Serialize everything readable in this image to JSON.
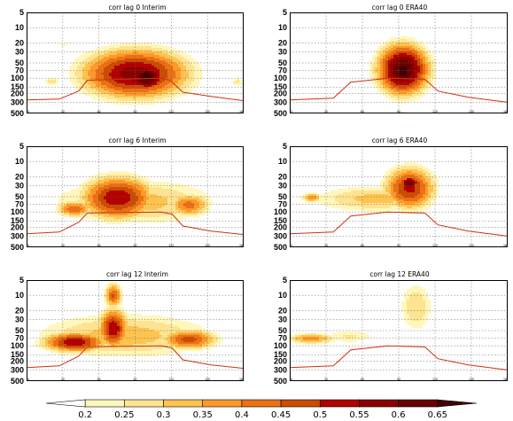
{
  "chart_data": {
    "type": "heatmap",
    "shared_y_ticks": [
      "5",
      "10",
      "20",
      "30",
      "50",
      "70",
      "100",
      "150",
      "200",
      "300",
      "500"
    ],
    "shared_x_ticks": [
      "0",
      "30",
      "60",
      "90",
      "120",
      "150",
      "180"
    ],
    "panels": [
      {
        "title": "corr lag 0 Interim",
        "blobs": [
          {
            "x": 0.5,
            "p": 82,
            "rx": 0.3,
            "ry": 0.3,
            "peak": 0.58
          },
          {
            "x": 0.55,
            "p": 95,
            "rx": 0.12,
            "ry": 0.18,
            "peak": 0.63
          },
          {
            "x": 0.12,
            "p": 115,
            "rx": 0.05,
            "ry": 0.06,
            "peak": 0.28
          },
          {
            "x": 0.97,
            "p": 120,
            "rx": 0.04,
            "ry": 0.06,
            "peak": 0.27
          },
          {
            "x": 0.17,
            "p": 22,
            "rx": 0.02,
            "ry": 0.03,
            "peak": 0.24
          }
        ],
        "tropopause": [
          [
            0.0,
            270
          ],
          [
            0.15,
            260
          ],
          [
            0.24,
            180
          ],
          [
            0.28,
            110
          ],
          [
            0.62,
            100
          ],
          [
            0.66,
            110
          ],
          [
            0.72,
            190
          ],
          [
            0.85,
            230
          ],
          [
            1.0,
            280
          ]
        ]
      },
      {
        "title": "corr lag 0 ERA40",
        "blobs": [
          {
            "x": 0.52,
            "p": 67,
            "rx": 0.14,
            "ry": 0.3,
            "peak": 0.66
          },
          {
            "x": 0.52,
            "p": 75,
            "rx": 0.07,
            "ry": 0.14,
            "peak": 0.7
          },
          {
            "x": 0.52,
            "p": 500,
            "rx": 0.03,
            "ry": 0.04,
            "peak": 0.26
          }
        ],
        "tropopause": [
          [
            0.0,
            270
          ],
          [
            0.2,
            250
          ],
          [
            0.28,
            120
          ],
          [
            0.45,
            100
          ],
          [
            0.62,
            105
          ],
          [
            0.68,
            180
          ],
          [
            0.82,
            240
          ],
          [
            1.0,
            300
          ]
        ]
      },
      {
        "title": "corr lag 6 Interim",
        "blobs": [
          {
            "x": 0.5,
            "p": 63,
            "rx": 0.5,
            "ry": 0.3,
            "peak": 0.33
          },
          {
            "x": 0.42,
            "p": 52,
            "rx": 0.2,
            "ry": 0.26,
            "peak": 0.52
          },
          {
            "x": 0.22,
            "p": 87,
            "rx": 0.1,
            "ry": 0.1,
            "peak": 0.42
          },
          {
            "x": 0.75,
            "p": 73,
            "rx": 0.12,
            "ry": 0.14,
            "peak": 0.4
          }
        ],
        "tropopause": [
          [
            0.0,
            270
          ],
          [
            0.15,
            250
          ],
          [
            0.24,
            160
          ],
          [
            0.28,
            105
          ],
          [
            0.62,
            100
          ],
          [
            0.67,
            110
          ],
          [
            0.72,
            190
          ],
          [
            0.85,
            240
          ],
          [
            1.0,
            280
          ]
        ]
      },
      {
        "title": "corr lag 6 ERA40",
        "blobs": [
          {
            "x": 0.4,
            "p": 55,
            "rx": 0.4,
            "ry": 0.18,
            "peak": 0.32
          },
          {
            "x": 0.55,
            "p": 33,
            "rx": 0.14,
            "ry": 0.26,
            "peak": 0.5
          },
          {
            "x": 0.55,
            "p": 27,
            "rx": 0.07,
            "ry": 0.1,
            "peak": 0.57
          },
          {
            "x": 0.1,
            "p": 52,
            "rx": 0.06,
            "ry": 0.06,
            "peak": 0.37
          }
        ],
        "tropopause": [
          [
            0.0,
            270
          ],
          [
            0.2,
            250
          ],
          [
            0.28,
            120
          ],
          [
            0.45,
            100
          ],
          [
            0.62,
            105
          ],
          [
            0.68,
            180
          ],
          [
            0.82,
            240
          ],
          [
            1.0,
            300
          ]
        ]
      },
      {
        "title": "corr lag 12 Interim",
        "blobs": [
          {
            "x": 0.45,
            "p": 63,
            "rx": 0.55,
            "ry": 0.3,
            "peak": 0.33
          },
          {
            "x": 0.22,
            "p": 85,
            "rx": 0.18,
            "ry": 0.12,
            "peak": 0.52
          },
          {
            "x": 0.4,
            "p": 45,
            "rx": 0.08,
            "ry": 0.24,
            "peak": 0.52
          },
          {
            "x": 0.4,
            "p": 10,
            "rx": 0.05,
            "ry": 0.15,
            "peak": 0.45
          },
          {
            "x": 0.75,
            "p": 75,
            "rx": 0.16,
            "ry": 0.12,
            "peak": 0.45
          }
        ],
        "tropopause": [
          [
            0.0,
            270
          ],
          [
            0.15,
            250
          ],
          [
            0.24,
            160
          ],
          [
            0.28,
            105
          ],
          [
            0.62,
            100
          ],
          [
            0.67,
            110
          ],
          [
            0.72,
            190
          ],
          [
            0.85,
            240
          ],
          [
            1.0,
            280
          ]
        ]
      },
      {
        "title": "corr lag 12 ERA40",
        "blobs": [
          {
            "x": 0.58,
            "p": 17,
            "rx": 0.1,
            "ry": 0.34,
            "peak": 0.3
          },
          {
            "x": 0.1,
            "p": 72,
            "rx": 0.15,
            "ry": 0.07,
            "peak": 0.38
          },
          {
            "x": 0.28,
            "p": 65,
            "rx": 0.18,
            "ry": 0.1,
            "peak": 0.25
          }
        ],
        "tropopause": [
          [
            0.0,
            270
          ],
          [
            0.2,
            250
          ],
          [
            0.28,
            120
          ],
          [
            0.45,
            100
          ],
          [
            0.62,
            105
          ],
          [
            0.68,
            180
          ],
          [
            0.82,
            240
          ],
          [
            1.0,
            300
          ]
        ]
      }
    ],
    "colorbar": {
      "levels": [
        "0.2",
        "0.25",
        "0.3",
        "0.35",
        "0.4",
        "0.45",
        "0.5",
        "0.55",
        "0.6",
        "0.65"
      ],
      "colors": [
        "#ffffff",
        "#fff7bc",
        "#fee391",
        "#fec44f",
        "#fe9929",
        "#ec7014",
        "#cc4c02",
        "#b30000",
        "#8c0000",
        "#6a0000",
        "#3f0000"
      ]
    },
    "ylim": [
      500,
      5
    ],
    "grid": true,
    "tropopause_color": "#d03010"
  }
}
